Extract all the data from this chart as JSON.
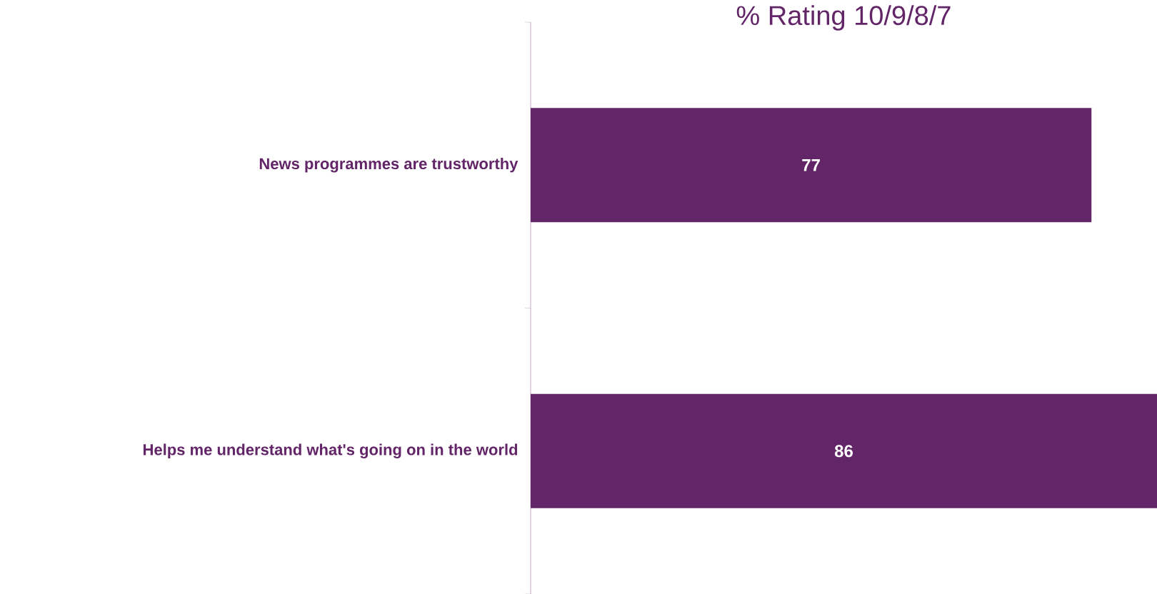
{
  "chart_data": {
    "type": "bar",
    "orientation": "horizontal",
    "title": "% Rating 10/9/8/7",
    "categories": [
      "News programmes are trustworthy",
      "Helps me understand what's going on in the world"
    ],
    "values": [
      77,
      86
    ],
    "value_labels": [
      "77",
      "86"
    ],
    "color": "#622567"
  }
}
